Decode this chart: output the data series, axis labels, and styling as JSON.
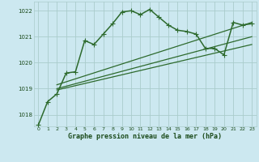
{
  "bg_color": "#cce8f0",
  "grid_color": "#aacccc",
  "line_color": "#2d6a2d",
  "text_color": "#1a4a1a",
  "xlabel": "Graphe pression niveau de la mer (hPa)",
  "xlim": [
    -0.5,
    23.5
  ],
  "ylim": [
    1017.55,
    1022.35
  ],
  "yticks": [
    1018,
    1019,
    1020,
    1021,
    1022
  ],
  "xticks": [
    0,
    1,
    2,
    3,
    4,
    5,
    6,
    7,
    8,
    9,
    10,
    11,
    12,
    13,
    14,
    15,
    16,
    17,
    18,
    19,
    20,
    21,
    22,
    23
  ],
  "series": [
    {
      "x": [
        0,
        1,
        2,
        3,
        4,
        5,
        6,
        7,
        8,
        9,
        10,
        11,
        12,
        13,
        14,
        15,
        16,
        17,
        18,
        19,
        20,
        21,
        22,
        23
      ],
      "y": [
        1017.6,
        1018.5,
        1018.8,
        1019.6,
        1019.65,
        1020.85,
        1020.7,
        1021.1,
        1021.5,
        1021.95,
        1022.0,
        1021.85,
        1022.05,
        1021.75,
        1021.45,
        1021.25,
        1021.2,
        1021.1,
        1020.55,
        1020.55,
        1020.3,
        1021.55,
        1021.45,
        1021.5
      ],
      "marker": "+",
      "markersize": 4,
      "linewidth": 1.1,
      "has_marker": true
    },
    {
      "x": [
        2,
        23
      ],
      "y": [
        1019.15,
        1021.55
      ],
      "marker": null,
      "markersize": 0,
      "linewidth": 0.9,
      "has_marker": false
    },
    {
      "x": [
        2,
        23
      ],
      "y": [
        1019.0,
        1021.0
      ],
      "marker": null,
      "markersize": 0,
      "linewidth": 0.9,
      "has_marker": false
    },
    {
      "x": [
        2,
        23
      ],
      "y": [
        1018.95,
        1020.7
      ],
      "marker": null,
      "markersize": 0,
      "linewidth": 0.9,
      "has_marker": false
    }
  ]
}
